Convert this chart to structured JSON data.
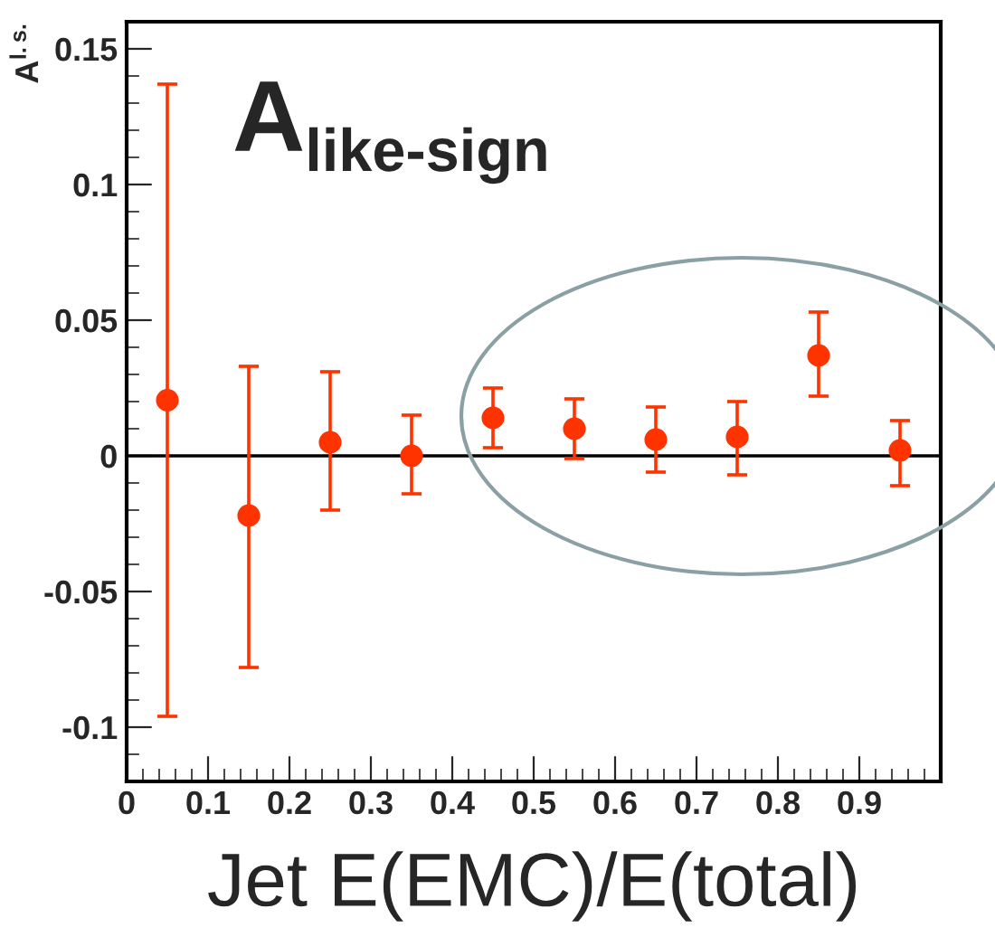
{
  "chart_data": {
    "type": "scatter",
    "title": "A$_{like-sign}$",
    "xlabel": "Jet E(EMC)/E(total)",
    "ylabel": "A$^{l.s.}$",
    "x": [
      0.05,
      0.15,
      0.25,
      0.35,
      0.45,
      0.55,
      0.65,
      0.75,
      0.85,
      0.95
    ],
    "values": [
      0.0205,
      -0.022,
      0.005,
      0.0,
      0.014,
      0.01,
      0.006,
      0.007,
      0.037,
      0.002
    ],
    "errors": [
      [
        -0.096,
        0.137
      ],
      [
        -0.078,
        0.033
      ],
      [
        -0.02,
        0.031
      ],
      [
        -0.014,
        0.015
      ],
      [
        0.003,
        0.025
      ],
      [
        -0.001,
        0.021
      ],
      [
        -0.006,
        0.018
      ],
      [
        -0.007,
        0.02
      ],
      [
        0.022,
        0.053
      ],
      [
        -0.011,
        0.013
      ]
    ],
    "color": "#ff3300",
    "marker": "circle",
    "xlim": [
      0,
      1
    ],
    "ylim": [
      -0.12,
      0.16
    ],
    "xticks": [
      0,
      0.1,
      0.2,
      0.3,
      0.4,
      0.5,
      0.6,
      0.7,
      0.8,
      0.9
    ],
    "yticks": [
      -0.1,
      -0.05,
      0,
      0.05,
      0.1,
      0.15
    ],
    "ref_lines": [
      {
        "axis": "y",
        "value": 0,
        "color": "#000000"
      }
    ],
    "grid": false,
    "legend": false
  }
}
